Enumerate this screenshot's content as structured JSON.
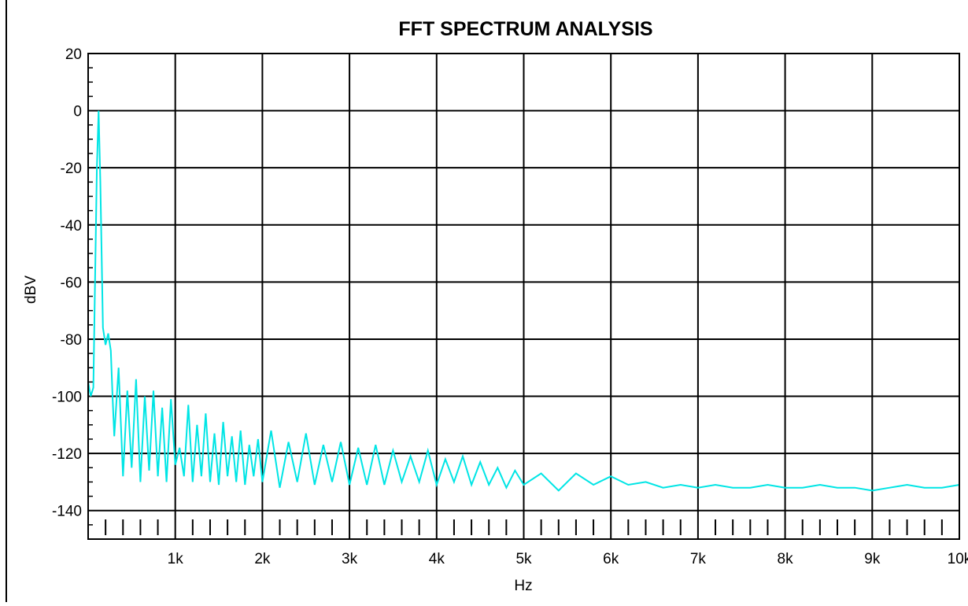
{
  "chart_data": {
    "type": "line",
    "title": "FFT SPECTRUM ANALYSIS",
    "xlabel": "Hz",
    "ylabel": "dBV",
    "xlim": [
      0,
      10000
    ],
    "ylim": [
      -150,
      20
    ],
    "grid": true,
    "legend": "none",
    "x_ticks": [
      {
        "value": 1000,
        "label": "1k"
      },
      {
        "value": 2000,
        "label": "2k"
      },
      {
        "value": 3000,
        "label": "3k"
      },
      {
        "value": 4000,
        "label": "4k"
      },
      {
        "value": 5000,
        "label": "5k"
      },
      {
        "value": 6000,
        "label": "6k"
      },
      {
        "value": 7000,
        "label": "7k"
      },
      {
        "value": 8000,
        "label": "8k"
      },
      {
        "value": 9000,
        "label": "9k"
      },
      {
        "value": 10000,
        "label": "10k"
      }
    ],
    "y_ticks": [
      {
        "value": 20,
        "label": "20"
      },
      {
        "value": 0,
        "label": "0"
      },
      {
        "value": -20,
        "label": "-20"
      },
      {
        "value": -40,
        "label": "-40"
      },
      {
        "value": -60,
        "label": "-60"
      },
      {
        "value": -80,
        "label": "-80"
      },
      {
        "value": -100,
        "label": "-100"
      },
      {
        "value": -120,
        "label": "-120"
      },
      {
        "value": -140,
        "label": "-140"
      }
    ],
    "series": [
      {
        "color": "#00e5e5",
        "x": [
          0,
          30,
          60,
          100,
          120,
          140,
          170,
          200,
          230,
          260,
          280,
          300,
          350,
          400,
          450,
          500,
          550,
          600,
          650,
          700,
          750,
          800,
          850,
          900,
          950,
          1000,
          1050,
          1100,
          1150,
          1200,
          1250,
          1300,
          1350,
          1400,
          1450,
          1500,
          1550,
          1600,
          1650,
          1700,
          1750,
          1800,
          1850,
          1900,
          1950,
          2000,
          2100,
          2200,
          2300,
          2400,
          2500,
          2600,
          2700,
          2800,
          2900,
          3000,
          3100,
          3200,
          3300,
          3400,
          3500,
          3600,
          3700,
          3800,
          3900,
          4000,
          4100,
          4200,
          4300,
          4400,
          4500,
          4600,
          4700,
          4800,
          4900,
          5000,
          5200,
          5400,
          5600,
          5800,
          6000,
          6200,
          6400,
          6600,
          6800,
          7000,
          7200,
          7400,
          7600,
          7800,
          8000,
          8200,
          8400,
          8600,
          8800,
          9000,
          9200,
          9400,
          9600,
          9800,
          10000
        ],
        "y": [
          -95,
          -100,
          -97,
          -20,
          0,
          -25,
          -76,
          -82,
          -78,
          -84,
          -100,
          -114,
          -90,
          -128,
          -98,
          -125,
          -94,
          -130,
          -100,
          -126,
          -98,
          -128,
          -104,
          -130,
          -101,
          -124,
          -118,
          -128,
          -103,
          -130,
          -110,
          -128,
          -106,
          -130,
          -113,
          -131,
          -109,
          -128,
          -114,
          -130,
          -112,
          -131,
          -117,
          -128,
          -115,
          -130,
          -112,
          -132,
          -116,
          -130,
          -113,
          -131,
          -117,
          -130,
          -116,
          -131,
          -118,
          -131,
          -117,
          -131,
          -119,
          -130,
          -121,
          -130,
          -119,
          -131,
          -122,
          -130,
          -121,
          -131,
          -123,
          -131,
          -125,
          -132,
          -126,
          -131,
          -127,
          -133,
          -127,
          -131,
          -128,
          -131,
          -130,
          -132,
          -131,
          -132,
          -131,
          -132,
          -132,
          -131,
          -132,
          -132,
          -131,
          -132,
          -132,
          -133,
          -132,
          -131,
          -132,
          -132,
          -131
        ]
      }
    ]
  }
}
